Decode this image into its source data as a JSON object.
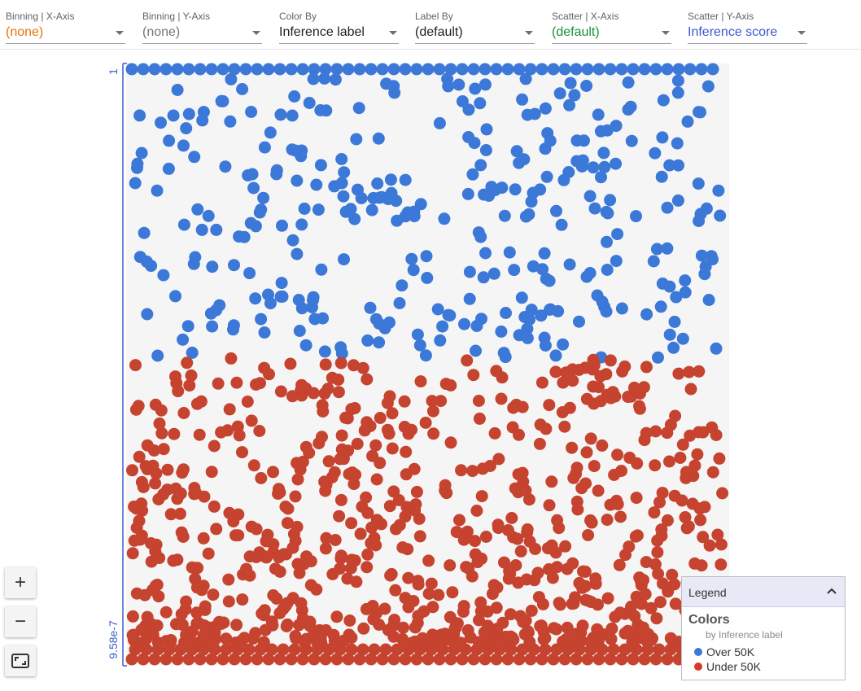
{
  "toolbar": {
    "dropdowns": [
      {
        "label": "Binning | X-Axis",
        "value": "(none)",
        "color": "#e8710a"
      },
      {
        "label": "Binning | Y-Axis",
        "value": "(none)",
        "color": "#757575"
      },
      {
        "label": "Color By",
        "value": "Inference label",
        "color": "#212121"
      },
      {
        "label": "Label By",
        "value": "(default)",
        "color": "#212121"
      },
      {
        "label": "Scatter | X-Axis",
        "value": "(default)",
        "color": "#1e8e3e"
      },
      {
        "label": "Scatter | Y-Axis",
        "value": "Inference score",
        "color": "#3c58cf"
      }
    ]
  },
  "axis": {
    "y_max_label": "1",
    "y_min_label": "9.58e-7",
    "color": "#3a5fc9"
  },
  "zoom": {
    "in": "+",
    "out": "−"
  },
  "legend": {
    "title": "Legend",
    "section": "Colors",
    "subtitle": "by Inference label",
    "items": [
      {
        "label": "Over 50K",
        "color": "#3b78d8"
      },
      {
        "label": "Under 50K",
        "color": "#d9392b"
      }
    ]
  },
  "colors": {
    "over": "#3b78d8",
    "under": "#c5432f",
    "plot_bg": "#f5f5f5"
  }
}
